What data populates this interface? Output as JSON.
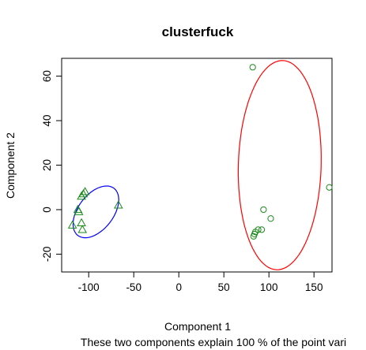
{
  "chart_data": {
    "type": "scatter",
    "title": "clusterfuck",
    "xlabel": "Component 1",
    "ylabel": "Component 2",
    "subtitle": "These two components explain 100 % of the point vari",
    "xlim": [
      -130,
      170
    ],
    "ylim": [
      -28,
      68
    ],
    "xticks": [
      -100,
      -50,
      0,
      50,
      100,
      150
    ],
    "yticks": [
      -20,
      0,
      20,
      40,
      60
    ],
    "grid": false,
    "legend": "none",
    "series": [
      {
        "marker": "triangle",
        "color": "#1a8a1a",
        "points": [
          {
            "x": -104,
            "y": 8
          },
          {
            "x": -106,
            "y": 7
          },
          {
            "x": -108,
            "y": 6
          },
          {
            "x": -112,
            "y": 0
          },
          {
            "x": -111,
            "y": -1
          },
          {
            "x": -108,
            "y": -6
          },
          {
            "x": -118,
            "y": -7
          },
          {
            "x": -107,
            "y": -9
          },
          {
            "x": -67,
            "y": 2
          }
        ]
      },
      {
        "marker": "circle",
        "color": "#1a8a1a",
        "points": [
          {
            "x": 82,
            "y": 64
          },
          {
            "x": 167,
            "y": 10
          },
          {
            "x": 94,
            "y": 0
          },
          {
            "x": 102,
            "y": -4
          },
          {
            "x": 88,
            "y": -9
          },
          {
            "x": 92,
            "y": -9
          },
          {
            "x": 85,
            "y": -10
          },
          {
            "x": 84,
            "y": -11
          },
          {
            "x": 83,
            "y": -12
          }
        ]
      }
    ],
    "ellipses": [
      {
        "color": "#0000ff",
        "cx": -92,
        "cy": -1,
        "rx": 26,
        "ry": 10,
        "angle": 0.25
      },
      {
        "color": "#ff0000",
        "cx": 112,
        "cy": 20,
        "rx": 48,
        "ry": 45,
        "angle": 0.95
      }
    ]
  }
}
